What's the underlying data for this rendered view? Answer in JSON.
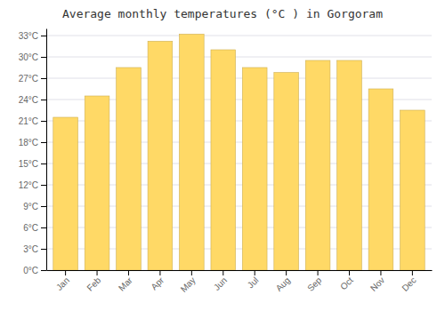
{
  "chart_data": {
    "type": "bar",
    "title": "Average monthly temperatures (°C ) in Gorgoram",
    "categories": [
      "Jan",
      "Feb",
      "Mar",
      "Apr",
      "May",
      "Jun",
      "Jul",
      "Aug",
      "Sep",
      "Oct",
      "Nov",
      "Dec"
    ],
    "values": [
      21.5,
      24.5,
      28.5,
      32.2,
      33.2,
      31.0,
      28.5,
      27.8,
      29.5,
      29.5,
      25.5,
      22.5
    ],
    "color": "#FFD966",
    "ylim": [
      0,
      34
    ],
    "yticks": [
      {
        "value": 0,
        "label": "0°C"
      },
      {
        "value": 3,
        "label": "3°C"
      },
      {
        "value": 6,
        "label": "6°C"
      },
      {
        "value": 9,
        "label": "9°C"
      },
      {
        "value": 12,
        "label": "12°C"
      },
      {
        "value": 15,
        "label": "15°C"
      },
      {
        "value": 18,
        "label": "18°C"
      },
      {
        "value": 21,
        "label": "21°C"
      },
      {
        "value": 24,
        "label": "24°C"
      },
      {
        "value": 27,
        "label": "27°C"
      },
      {
        "value": 30,
        "label": "30°C"
      },
      {
        "value": 33,
        "label": "33°C"
      }
    ],
    "grid": true
  }
}
